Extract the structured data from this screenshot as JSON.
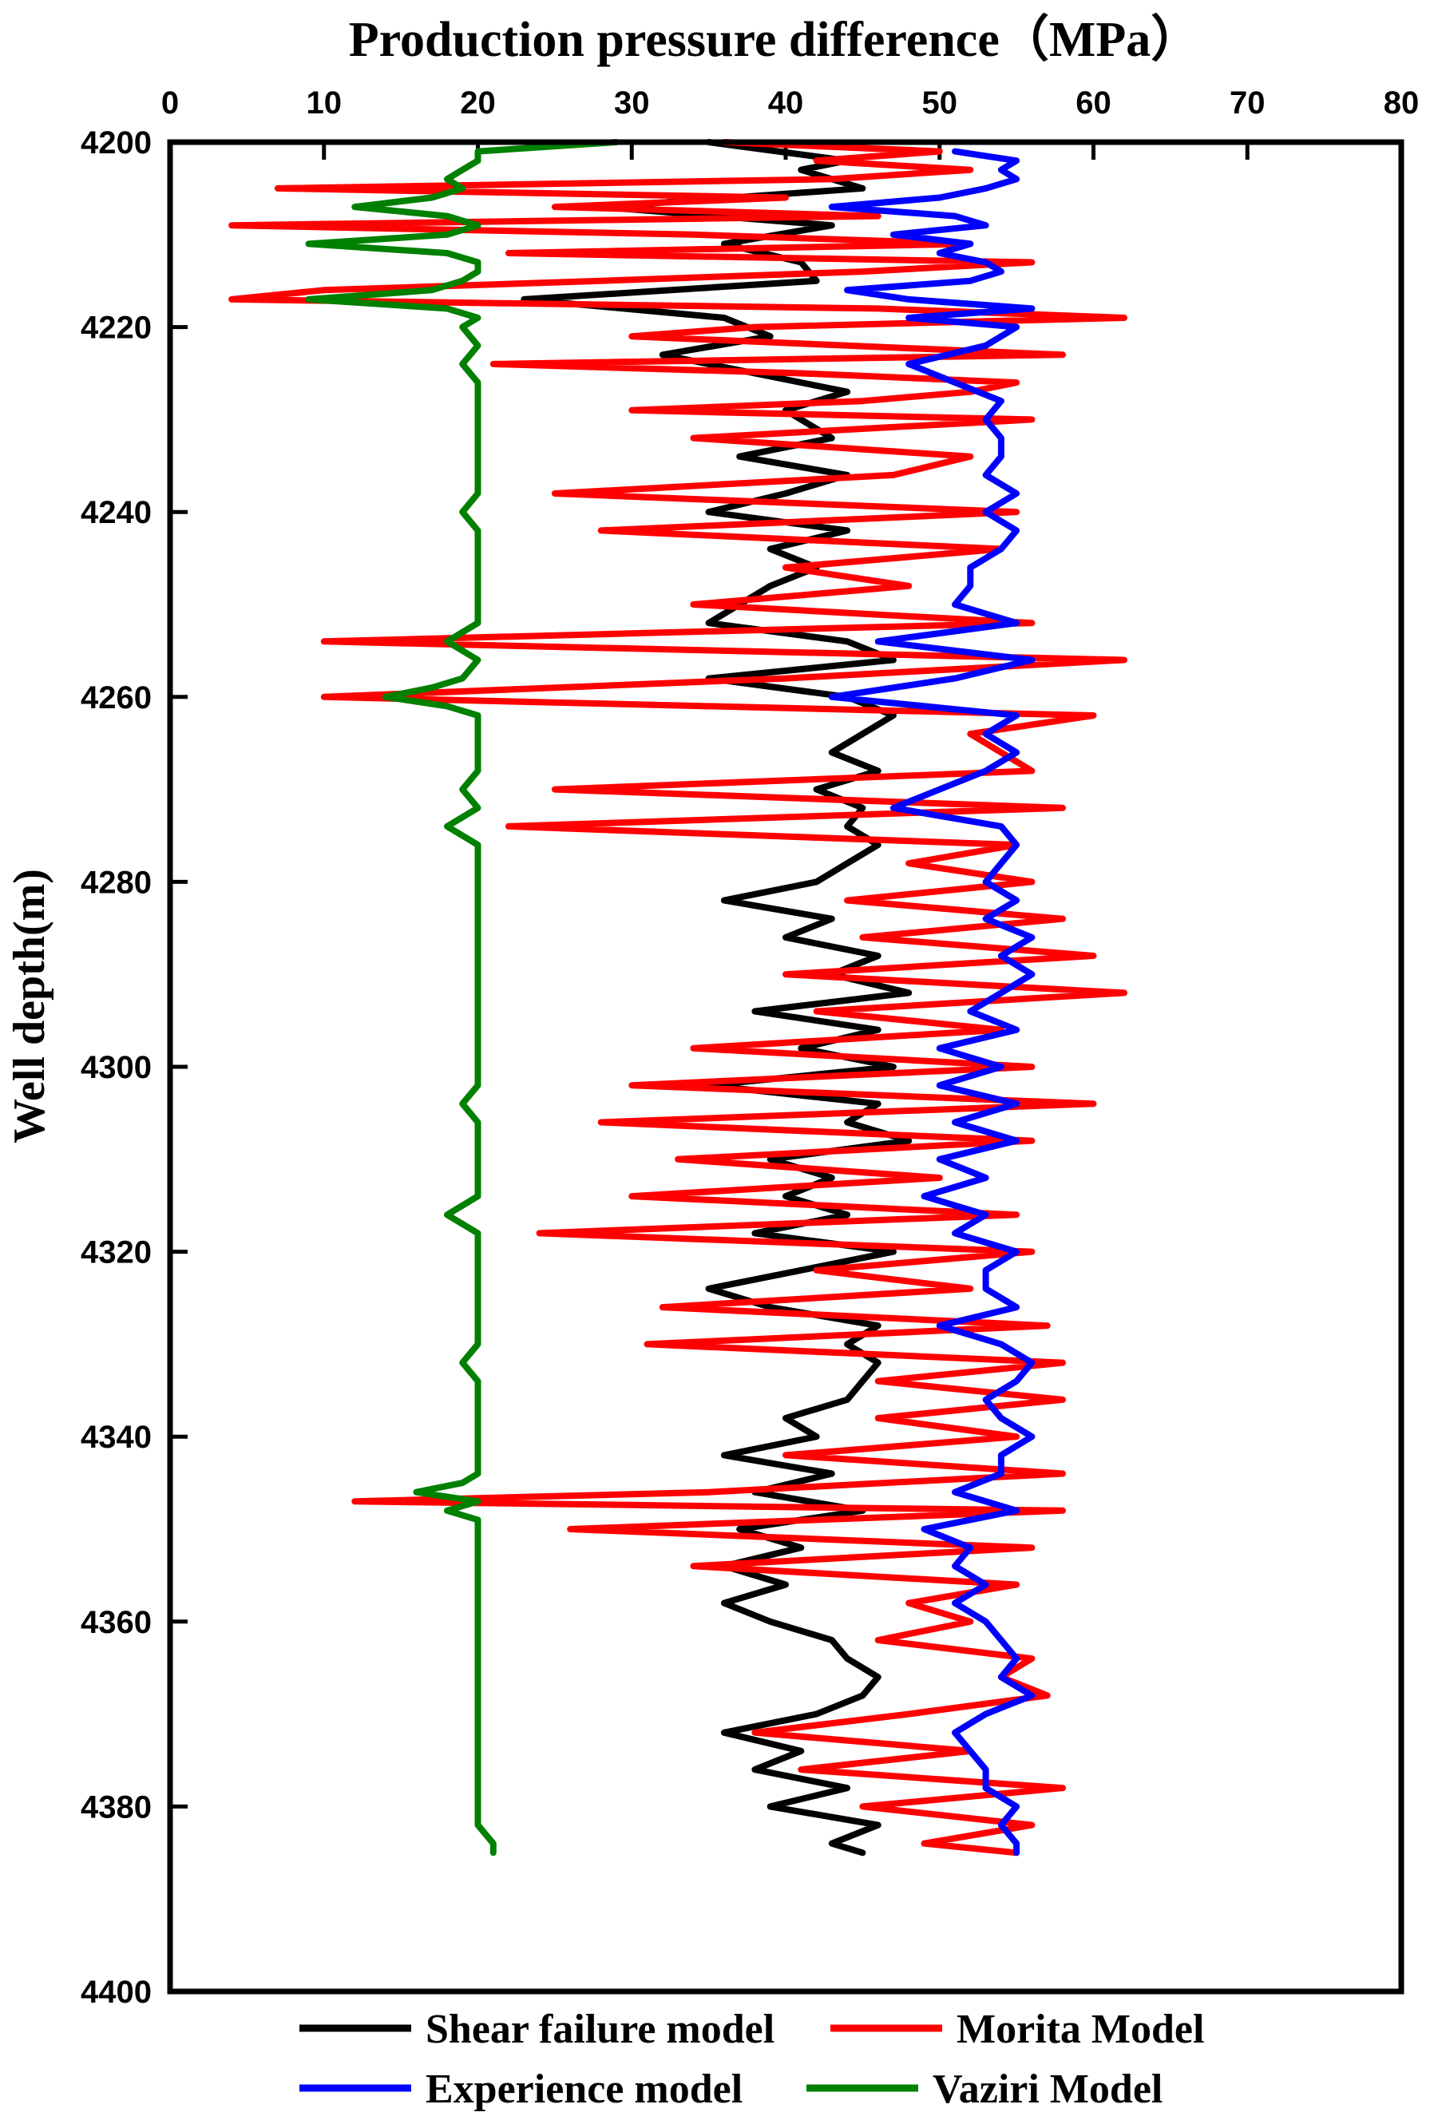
{
  "chart_data": {
    "type": "line",
    "title": "Production pressure difference（MPa）",
    "xlabel": "",
    "ylabel": "Well depth(m)",
    "xlim": [
      0,
      80
    ],
    "ylim": [
      4200,
      4400
    ],
    "y_inverted": true,
    "x_axis_position": "top",
    "x_ticks": [
      "0",
      "10",
      "20",
      "30",
      "40",
      "50",
      "60",
      "70",
      "80"
    ],
    "y_ticks": [
      "4200",
      "4220",
      "4240",
      "4260",
      "4280",
      "4300",
      "4320",
      "4340",
      "4360",
      "4380",
      "4400"
    ],
    "grid": false,
    "legend_position": "bottom",
    "series": [
      {
        "name": "Shear failure model",
        "color": "#000000",
        "depth": [
          4200,
          4202,
          4203,
          4205,
          4207,
          4209,
          4211,
          4213,
          4215,
          4217,
          4219,
          4221,
          4223,
          4225,
          4227,
          4229,
          4230,
          4232,
          4234,
          4236,
          4238,
          4240,
          4242,
          4244,
          4246,
          4248,
          4250,
          4252,
          4254,
          4256,
          4258,
          4260,
          4262,
          4264,
          4266,
          4268,
          4270,
          4272,
          4274,
          4276,
          4278,
          4280,
          4282,
          4284,
          4286,
          4288,
          4290,
          4292,
          4294,
          4296,
          4298,
          4300,
          4302,
          4304,
          4306,
          4308,
          4310,
          4312,
          4314,
          4316,
          4318,
          4320,
          4322,
          4324,
          4326,
          4328,
          4330,
          4332,
          4334,
          4336,
          4338,
          4340,
          4342,
          4344,
          4346,
          4348,
          4350,
          4352,
          4354,
          4356,
          4358,
          4360,
          4362,
          4364,
          4366,
          4368,
          4370,
          4372,
          4374,
          4376,
          4378,
          4380,
          4382,
          4384,
          4385
        ],
        "values": [
          35,
          44,
          41,
          45,
          28,
          43,
          36,
          41,
          42,
          23,
          36,
          39,
          32,
          38,
          44,
          40,
          41,
          43,
          37,
          44,
          40,
          35,
          44,
          39,
          42,
          39,
          37,
          35,
          44,
          47,
          35,
          44,
          47,
          45,
          43,
          46,
          42,
          45,
          44,
          46,
          44,
          42,
          36,
          43,
          40,
          46,
          43,
          48,
          38,
          46,
          41,
          47,
          35,
          46,
          44,
          48,
          39,
          43,
          40,
          44,
          38,
          47,
          41,
          35,
          39,
          46,
          44,
          46,
          45,
          44,
          40,
          42,
          36,
          43,
          38,
          45,
          37,
          41,
          36,
          40,
          36,
          39,
          43,
          44,
          46,
          45,
          42,
          36,
          41,
          38,
          44,
          39,
          46,
          43,
          45
        ]
      },
      {
        "name": "Morita Model",
        "color": "#ff0000",
        "depth": [
          4200,
          4201,
          4202,
          4203,
          4204,
          4205,
          4206,
          4207,
          4208,
          4209,
          4210,
          4211,
          4212,
          4213,
          4214,
          4215,
          4216,
          4217,
          4218,
          4219,
          4220,
          4221,
          4222,
          4223,
          4224,
          4225,
          4226,
          4227,
          4228,
          4229,
          4230,
          4232,
          4234,
          4236,
          4238,
          4240,
          4242,
          4244,
          4246,
          4248,
          4250,
          4252,
          4254,
          4256,
          4258,
          4260,
          4262,
          4264,
          4266,
          4268,
          4270,
          4272,
          4274,
          4276,
          4278,
          4280,
          4282,
          4284,
          4286,
          4288,
          4290,
          4292,
          4294,
          4296,
          4298,
          4300,
          4302,
          4304,
          4306,
          4308,
          4310,
          4312,
          4314,
          4316,
          4318,
          4320,
          4322,
          4324,
          4326,
          4328,
          4330,
          4332,
          4334,
          4336,
          4338,
          4340,
          4342,
          4344,
          4346,
          4347,
          4348,
          4350,
          4352,
          4354,
          4356,
          4358,
          4360,
          4362,
          4364,
          4366,
          4368,
          4370,
          4372,
          4374,
          4376,
          4378,
          4380,
          4382,
          4384,
          4385
        ],
        "values": [
          36,
          50,
          42,
          52,
          43,
          7,
          40,
          25,
          46,
          4,
          34,
          52,
          22,
          56,
          45,
          28,
          10,
          4,
          46,
          62,
          38,
          30,
          44,
          58,
          21,
          41,
          55,
          52,
          45,
          30,
          56,
          34,
          52,
          47,
          25,
          55,
          28,
          54,
          40,
          48,
          34,
          56,
          10,
          62,
          40,
          10,
          60,
          52,
          54,
          56,
          25,
          58,
          22,
          55,
          48,
          56,
          44,
          58,
          45,
          60,
          40,
          62,
          42,
          54,
          34,
          56,
          30,
          60,
          28,
          56,
          33,
          50,
          30,
          55,
          24,
          56,
          42,
          52,
          32,
          57,
          31,
          58,
          46,
          58,
          46,
          55,
          40,
          58,
          35,
          12,
          58,
          26,
          56,
          34,
          55,
          48,
          52,
          46,
          56,
          54,
          57,
          48,
          38,
          52,
          41,
          58,
          45,
          56,
          49,
          55
        ]
      },
      {
        "name": "Experience model",
        "color": "#0000ff",
        "depth": [
          4201,
          4202,
          4203,
          4204,
          4205,
          4206,
          4207,
          4208,
          4209,
          4210,
          4211,
          4212,
          4213,
          4214,
          4215,
          4216,
          4217,
          4218,
          4219,
          4220,
          4222,
          4224,
          4226,
          4228,
          4230,
          4232,
          4234,
          4236,
          4238,
          4240,
          4242,
          4244,
          4246,
          4248,
          4250,
          4252,
          4254,
          4256,
          4258,
          4260,
          4262,
          4264,
          4266,
          4268,
          4270,
          4272,
          4274,
          4276,
          4278,
          4280,
          4282,
          4284,
          4286,
          4288,
          4290,
          4292,
          4294,
          4296,
          4298,
          4300,
          4302,
          4304,
          4306,
          4308,
          4310,
          4312,
          4314,
          4316,
          4318,
          4320,
          4322,
          4324,
          4326,
          4328,
          4330,
          4332,
          4334,
          4336,
          4338,
          4340,
          4342,
          4344,
          4346,
          4348,
          4350,
          4352,
          4354,
          4356,
          4358,
          4360,
          4362,
          4364,
          4366,
          4368,
          4370,
          4372,
          4374,
          4376,
          4378,
          4380,
          4382,
          4384,
          4385
        ],
        "values": [
          51,
          55,
          54,
          55,
          53,
          50,
          43,
          51,
          53,
          47,
          52,
          50,
          53,
          54,
          52,
          44,
          48,
          56,
          48,
          55,
          53,
          48,
          51,
          54,
          53,
          54,
          54,
          53,
          55,
          53,
          55,
          54,
          52,
          52,
          51,
          55,
          46,
          56,
          51,
          43,
          55,
          53,
          55,
          53,
          50,
          47,
          54,
          55,
          54,
          53,
          55,
          53,
          56,
          54,
          56,
          54,
          52,
          55,
          50,
          54,
          50,
          55,
          51,
          55,
          50,
          53,
          49,
          53,
          51,
          55,
          53,
          53,
          55,
          50,
          54,
          56,
          55,
          53,
          54,
          56,
          54,
          54,
          51,
          55,
          49,
          52,
          51,
          53,
          51,
          53,
          54,
          55,
          54,
          56,
          53,
          51,
          52,
          53,
          53,
          55,
          54,
          55,
          55
        ]
      },
      {
        "name": "Vaziri Model",
        "color": "#008000",
        "depth": [
          4200,
          4201,
          4202,
          4203,
          4204,
          4205,
          4206,
          4207,
          4208,
          4209,
          4210,
          4211,
          4212,
          4213,
          4214,
          4215,
          4216,
          4217,
          4218,
          4219,
          4220,
          4222,
          4224,
          4226,
          4228,
          4230,
          4232,
          4234,
          4236,
          4238,
          4240,
          4242,
          4244,
          4246,
          4248,
          4250,
          4252,
          4254,
          4256,
          4258,
          4259,
          4260,
          4261,
          4262,
          4264,
          4266,
          4268,
          4270,
          4272,
          4274,
          4276,
          4278,
          4280,
          4282,
          4284,
          4286,
          4288,
          4290,
          4292,
          4294,
          4296,
          4298,
          4300,
          4302,
          4304,
          4306,
          4308,
          4310,
          4312,
          4314,
          4316,
          4318,
          4320,
          4322,
          4324,
          4326,
          4328,
          4330,
          4332,
          4334,
          4336,
          4338,
          4340,
          4342,
          4344,
          4345,
          4346,
          4347,
          4348,
          4349,
          4350,
          4352,
          4354,
          4356,
          4358,
          4360,
          4362,
          4364,
          4366,
          4368,
          4370,
          4372,
          4374,
          4376,
          4378,
          4380,
          4382,
          4384,
          4385
        ],
        "values": [
          29,
          20,
          20,
          19,
          18,
          19,
          17,
          12,
          18,
          20,
          18,
          9,
          18,
          20,
          20,
          19,
          17,
          9,
          18,
          20,
          19,
          20,
          19,
          20,
          20,
          20,
          20,
          20,
          20,
          20,
          19,
          20,
          20,
          20,
          20,
          20,
          20,
          18,
          20,
          19,
          17,
          14,
          18,
          20,
          20,
          20,
          20,
          19,
          20,
          18,
          20,
          20,
          20,
          20,
          20,
          20,
          20,
          20,
          20,
          20,
          20,
          20,
          20,
          20,
          19,
          20,
          20,
          20,
          20,
          20,
          18,
          20,
          20,
          20,
          20,
          20,
          20,
          20,
          19,
          20,
          20,
          20,
          20,
          20,
          20,
          19,
          16,
          20,
          18,
          20,
          20,
          20,
          20,
          20,
          20,
          20,
          20,
          20,
          20,
          20,
          20,
          20,
          20,
          20,
          20,
          20,
          20,
          21,
          21
        ]
      }
    ]
  }
}
